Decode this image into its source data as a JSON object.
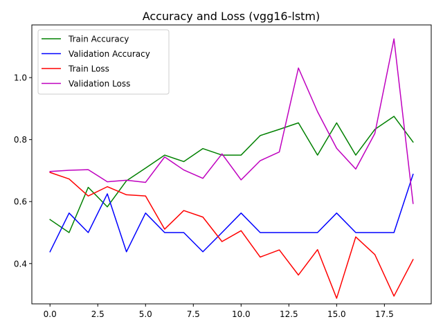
{
  "chart_data": {
    "type": "line",
    "title": "Accuracy and Loss (vgg16-lstm)",
    "xlabel": "",
    "ylabel": "",
    "xlim": [
      -0.95,
      19.95
    ],
    "ylim": [
      0.27,
      1.17
    ],
    "xticks": [
      0.0,
      2.5,
      5.0,
      7.5,
      10.0,
      12.5,
      15.0,
      17.5
    ],
    "xtick_labels": [
      "0.0",
      "2.5",
      "5.0",
      "7.5",
      "10.0",
      "12.5",
      "15.0",
      "17.5"
    ],
    "yticks": [
      0.4,
      0.6,
      0.8,
      1.0
    ],
    "ytick_labels": [
      "0.4",
      "0.6",
      "0.8",
      "1.0"
    ],
    "grid": false,
    "legend_position": "top-left",
    "x": [
      0,
      1,
      2,
      3,
      4,
      5,
      6,
      7,
      8,
      9,
      10,
      11,
      12,
      13,
      14,
      15,
      16,
      17,
      18,
      19
    ],
    "series": [
      {
        "name": "Train Accuracy",
        "color": "#008000",
        "values": [
          0.542,
          0.5,
          0.646,
          0.583,
          0.667,
          0.708,
          0.75,
          0.729,
          0.771,
          0.75,
          0.75,
          0.813,
          0.833,
          0.854,
          0.75,
          0.854,
          0.75,
          0.833,
          0.875,
          0.792
        ]
      },
      {
        "name": "Validation Accuracy",
        "color": "#0000ff",
        "values": [
          0.438,
          0.563,
          0.5,
          0.625,
          0.438,
          0.563,
          0.5,
          0.5,
          0.438,
          0.5,
          0.563,
          0.5,
          0.5,
          0.5,
          0.5,
          0.563,
          0.5,
          0.5,
          0.5,
          0.688
        ]
      },
      {
        "name": "Train Loss",
        "color": "#ff0000",
        "values": [
          0.694,
          0.673,
          0.618,
          0.648,
          0.622,
          0.618,
          0.511,
          0.571,
          0.55,
          0.471,
          0.506,
          0.421,
          0.444,
          0.363,
          0.445,
          0.288,
          0.486,
          0.429,
          0.295,
          0.413
        ]
      },
      {
        "name": "Validation Loss",
        "color": "#bf00bf",
        "values": [
          0.697,
          0.701,
          0.703,
          0.664,
          0.669,
          0.662,
          0.744,
          0.702,
          0.675,
          0.754,
          0.67,
          0.732,
          0.76,
          1.031,
          0.89,
          0.772,
          0.705,
          0.82,
          1.125,
          0.594
        ]
      }
    ]
  }
}
